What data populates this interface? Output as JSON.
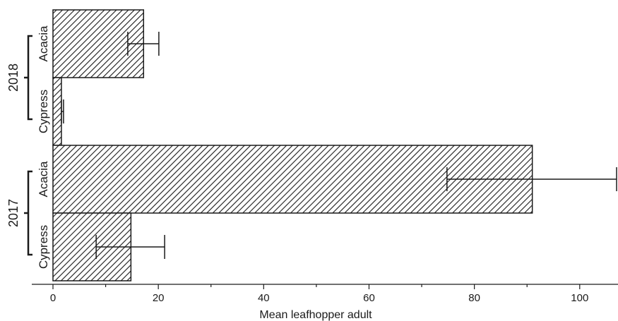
{
  "chart_data": {
    "type": "bar",
    "orientation": "horizontal",
    "xlabel": "Mean leafhopper adult",
    "xlim": [
      0,
      107
    ],
    "xticks": [
      0,
      20,
      40,
      60,
      80,
      100
    ],
    "groups": [
      {
        "label": "2018",
        "bars": [
          {
            "category": "Acacia",
            "value": 17.2,
            "error_low": 14.2,
            "error_high": 20.1
          },
          {
            "category": "Cypress",
            "value": 1.6,
            "error_low": 1.6,
            "error_high": 2.0
          }
        ]
      },
      {
        "label": "2017",
        "bars": [
          {
            "category": "Acacia",
            "value": 91.0,
            "error_low": 74.8,
            "error_high": 107.0
          },
          {
            "category": "Cypress",
            "value": 14.8,
            "error_low": 8.2,
            "error_high": 21.2
          }
        ]
      }
    ],
    "bar_fill": "hatched",
    "bar_color": "#1a1a1a",
    "background": "#ffffff"
  }
}
